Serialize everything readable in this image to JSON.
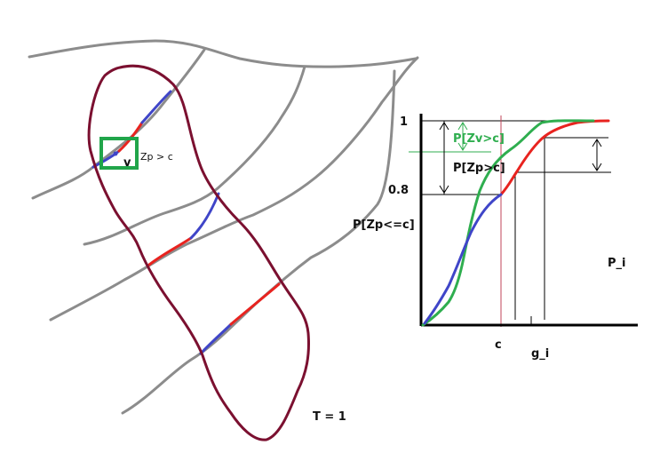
{
  "left_diagram": {
    "v_label": "v",
    "zp_label": "Zp > c",
    "t_label": "T = 1"
  },
  "cdf_chart": {
    "y_tick_1": "1",
    "y_tick_08": "0.8",
    "y_axis_label": "P[Zp<=c]",
    "label_zv": "P[Zv>c]",
    "label_zp": "P[Zp>c]",
    "p_i_label": "P_i",
    "c_label": "c",
    "g_i_label": "g_i"
  },
  "colors": {
    "contour_gray": "#8c8c8c",
    "outline_maroon": "#7b1030",
    "segment_red": "#e8231f",
    "segment_blue": "#3f45c8",
    "curve_green": "#2fae4f",
    "box_green": "#21a54a",
    "marker_c": "#c0455a",
    "axis": "#000000"
  }
}
